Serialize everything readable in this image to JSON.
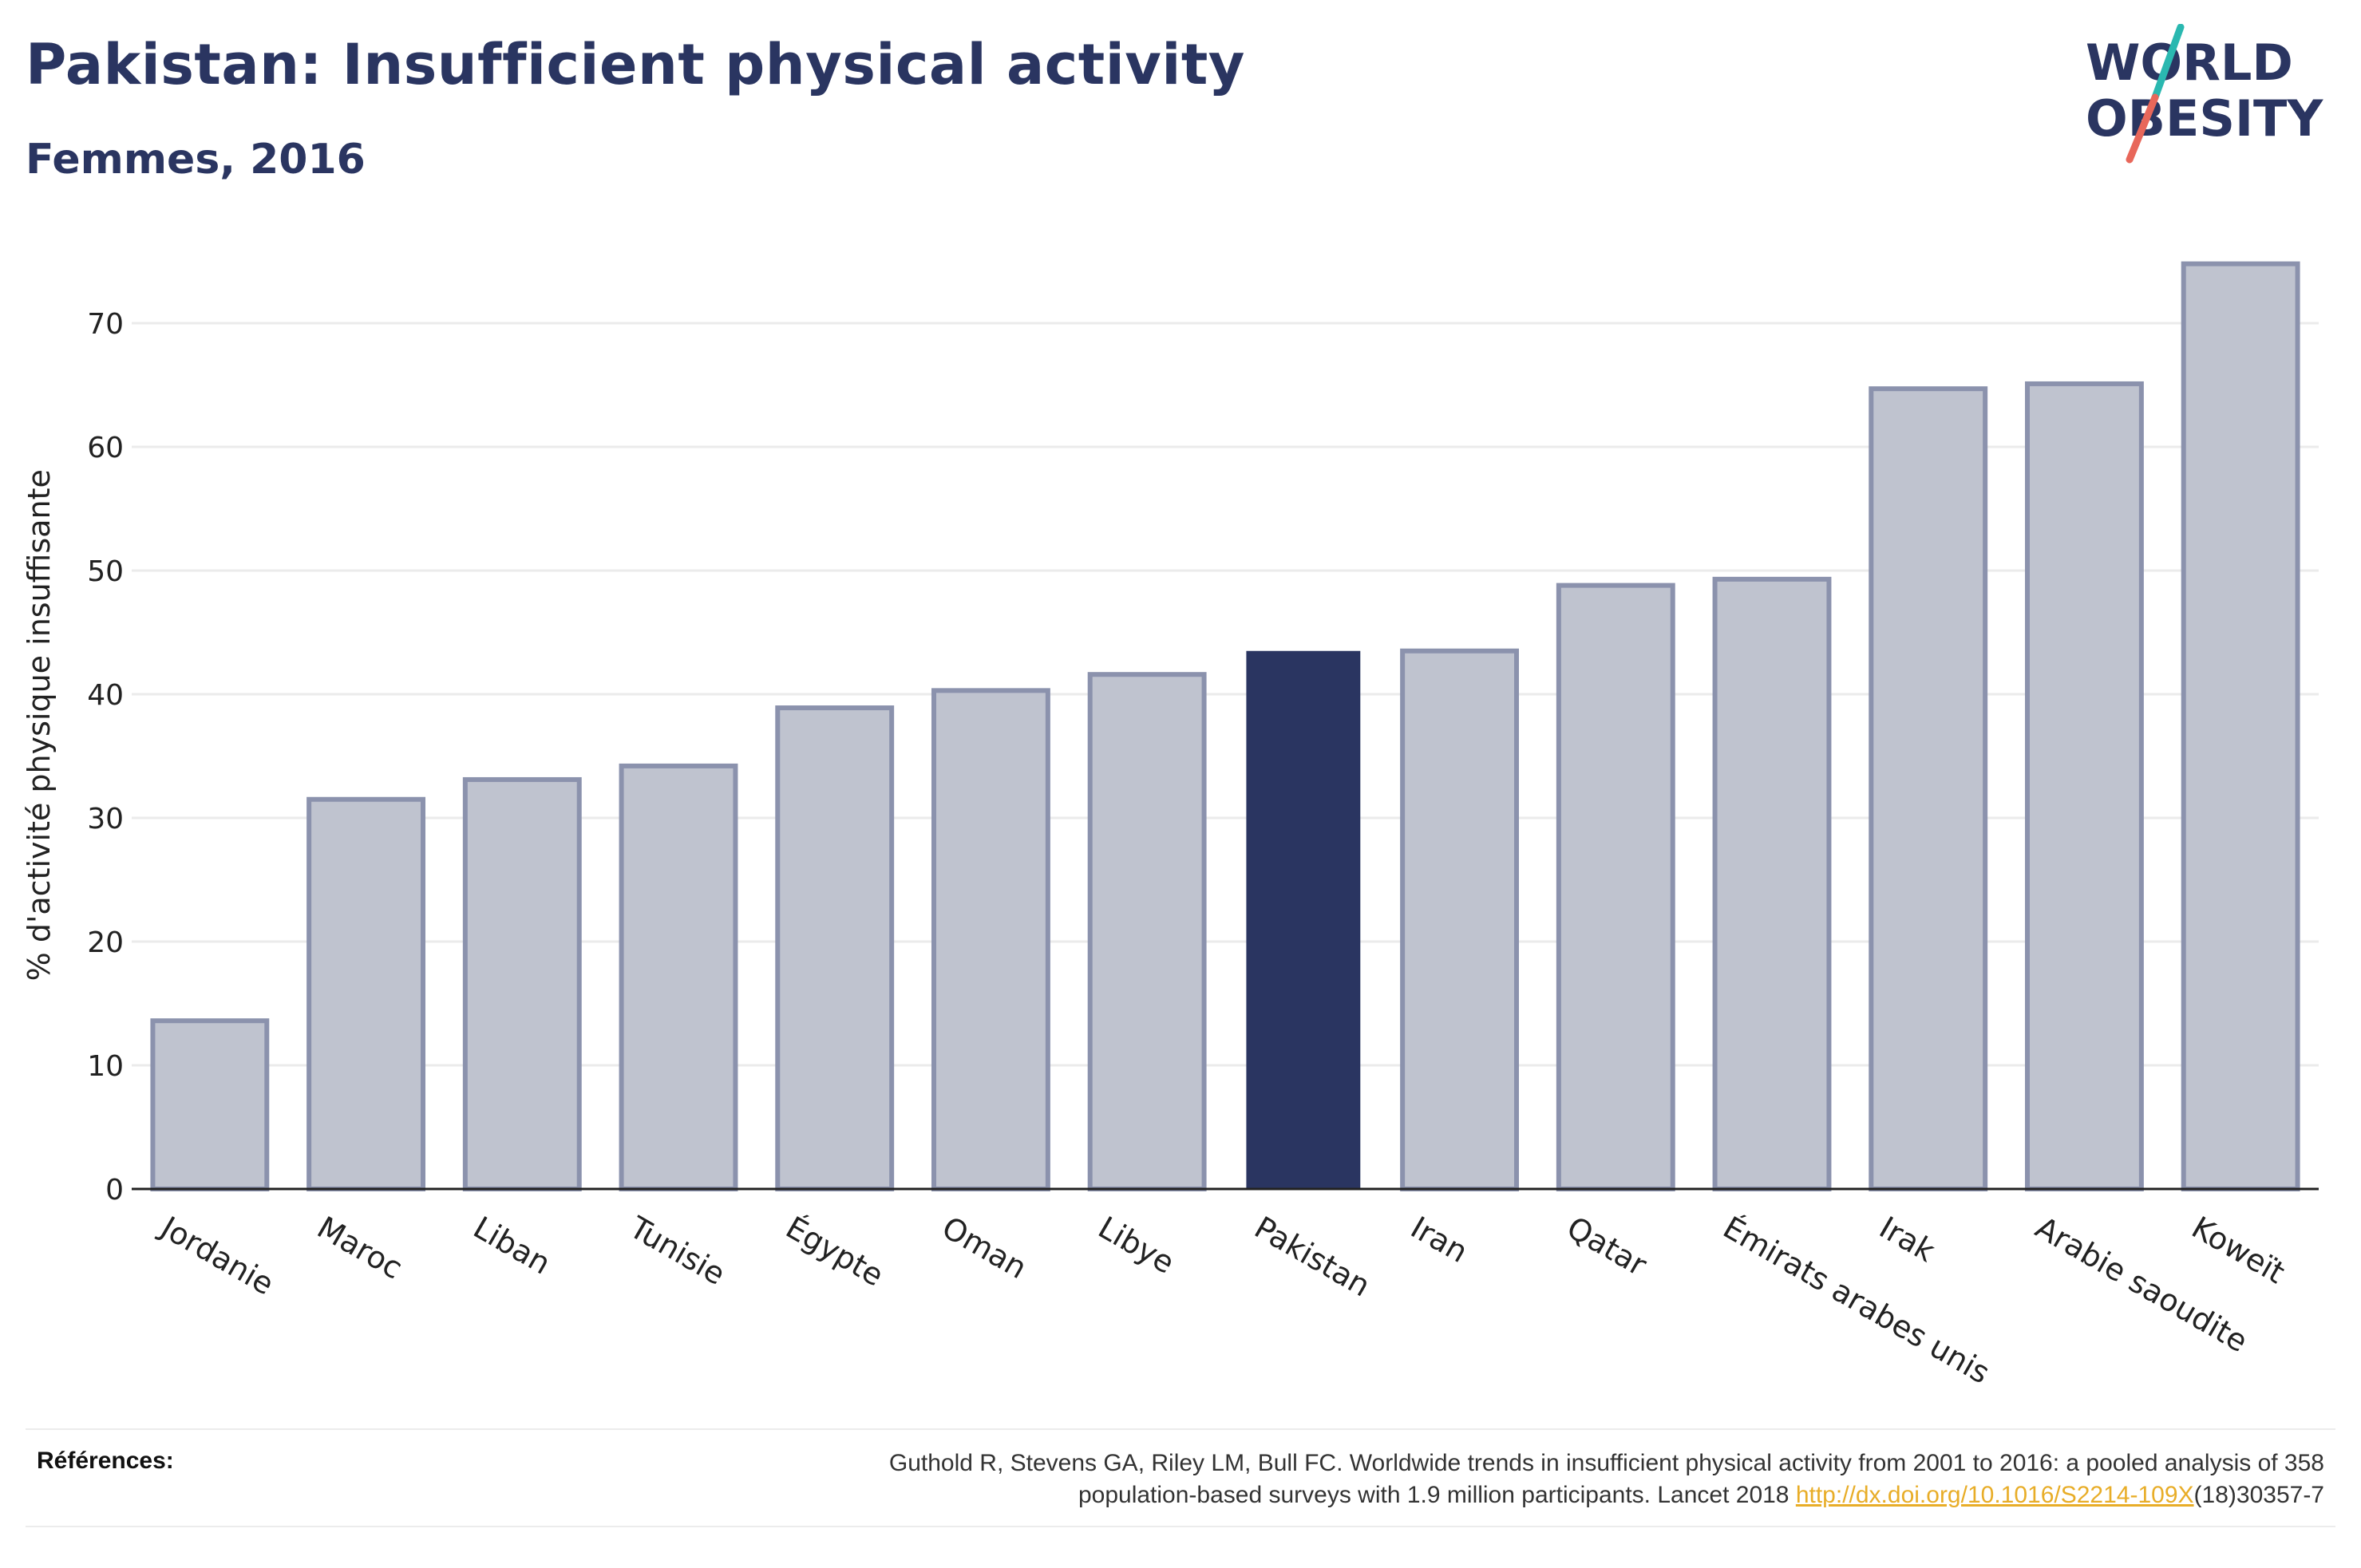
{
  "header": {
    "title": "Pakistan: Insufficient physical activity",
    "subtitle": "Femmes, 2016"
  },
  "logo": {
    "line1": "WORLD",
    "line2": "OBESITY",
    "text_color": "#2a3561",
    "slash_top_color": "#2ab8b0",
    "slash_bottom_color": "#e8675a"
  },
  "chart_data": {
    "type": "bar",
    "ylabel": "% d'activité physique insuffisante",
    "xlabel": "",
    "ylim": [
      0,
      78
    ],
    "yticks": [
      0,
      10,
      20,
      30,
      40,
      50,
      60,
      70
    ],
    "grid": true,
    "highlight": "Pakistan",
    "colors": {
      "bar": "#bfc3cf",
      "bar_border": "#8b92ad",
      "highlight": "#2a3561",
      "grid": "#ebebeb",
      "axis": "#222222"
    },
    "categories": [
      "Jordanie",
      "Maroc",
      "Liban",
      "Tunisie",
      "Égypte",
      "Oman",
      "Libye",
      "Pakistan",
      "Iran",
      "Qatar",
      "Émirats arabes unis",
      "Irak",
      "Arabie saoudite",
      "Koweït"
    ],
    "values": [
      13.6,
      31.5,
      33.1,
      34.2,
      38.9,
      40.3,
      41.6,
      43.5,
      43.5,
      48.8,
      49.3,
      64.7,
      65.1,
      74.8
    ]
  },
  "footer": {
    "references_label": "Références:",
    "reference_text_1": "Guthold R, Stevens GA, Riley LM, Bull FC. Worldwide trends in insufficient physical activity from 2001 to 2016: a pooled analysis of 358",
    "reference_text_2": "population-based surveys with 1.9 million participants. Lancet 2018 ",
    "reference_link": "http://dx.doi.org/10.1016/S2214-109X",
    "reference_suffix": "(18)30357-7"
  }
}
